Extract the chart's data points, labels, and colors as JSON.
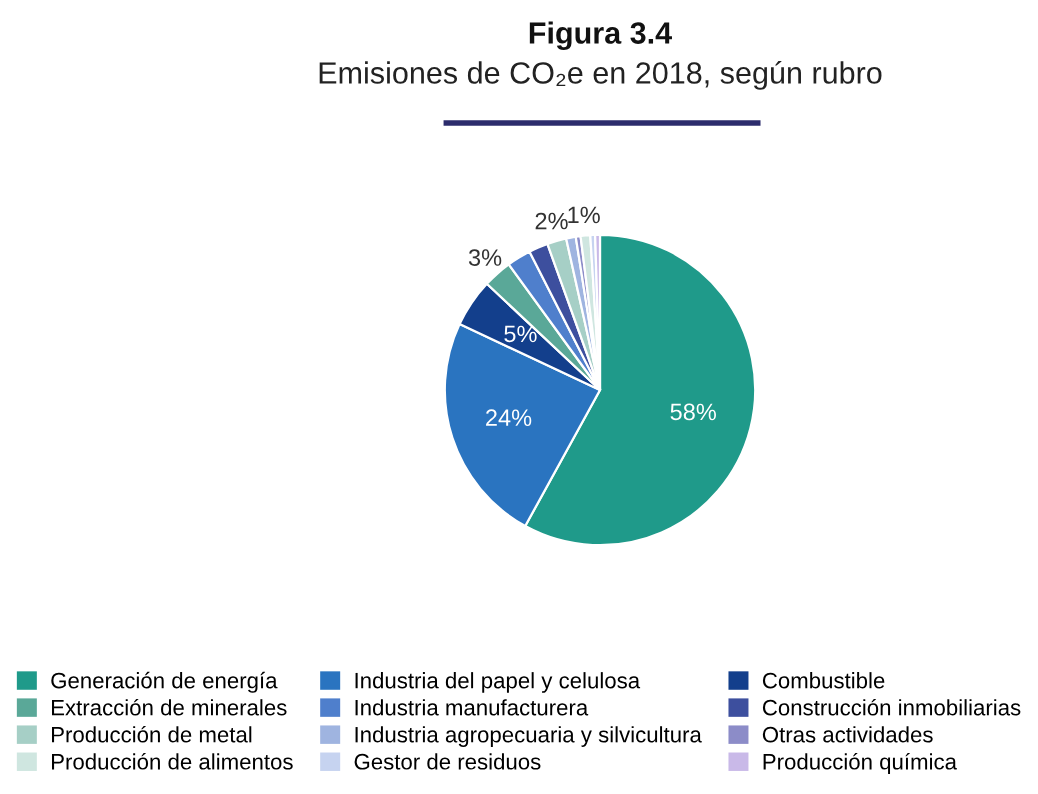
{
  "chart_data": {
    "type": "pie",
    "title": "Figura 3.4",
    "subtitle": "Emisiones de CO₂e en 2018, según rubro",
    "categories": [
      "Generación de energía",
      "Industria del papel y celulosa",
      "Combustible",
      "Extracción de minerales",
      "Industria manufacturera",
      "Construcción inmobiliarias",
      "Producción de metal",
      "Industria agropecuaria y silvicultura",
      "Otras actividades",
      "Producción de alimentos",
      "Gestor de residuos",
      "Producción química"
    ],
    "values": [
      58,
      24,
      5,
      3,
      2.5,
      2,
      2,
      1,
      0.5,
      1,
      0.5,
      0.5
    ],
    "colors": [
      "#1f9a8a",
      "#2a74c0",
      "#133f8c",
      "#5aa898",
      "#4f7fcc",
      "#3d4f9e",
      "#a6cfc6",
      "#9fb4e0",
      "#8c8cc8",
      "#cfe6e0",
      "#c6d3f0",
      "#c9b9e8"
    ],
    "value_labels": [
      "58%",
      "24%",
      "5%",
      "3%",
      null,
      null,
      "2%",
      null,
      null,
      "1%",
      null,
      null
    ],
    "legend": "bottom"
  }
}
